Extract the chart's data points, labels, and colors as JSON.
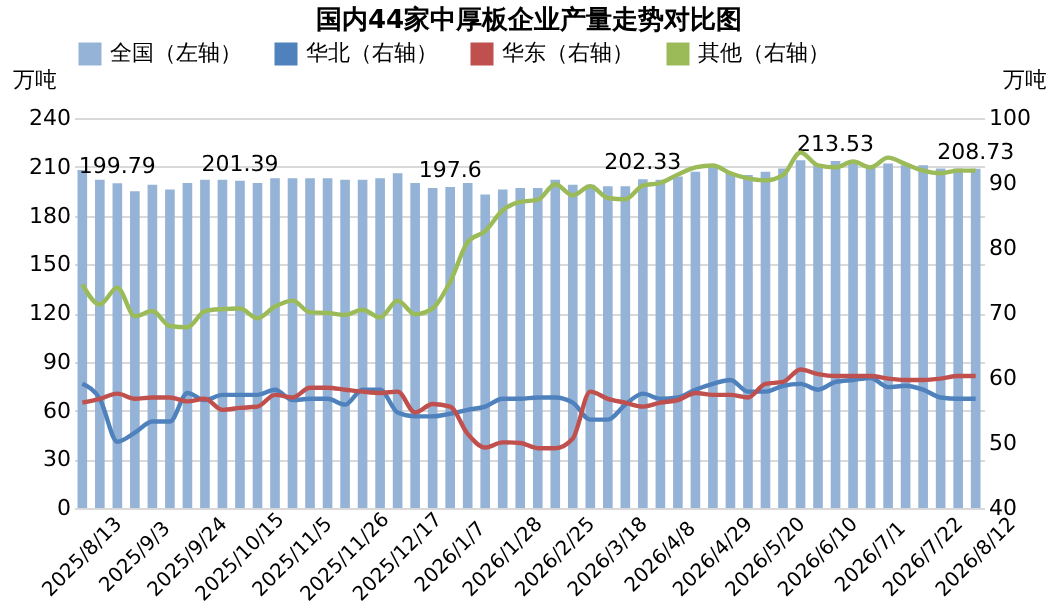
{
  "chart_data": {
    "type": "bar",
    "title": "国内44家中厚板企业产量走势对比图",
    "categories": [
      "2025/8/13",
      null,
      null,
      "2025/9/3",
      null,
      null,
      "2025/9/24",
      null,
      null,
      "2025/10/15",
      null,
      null,
      "2025/11/5",
      null,
      null,
      "2025/11/26",
      null,
      null,
      "2025/12/17",
      null,
      null,
      "2026/1/7",
      null,
      null,
      "2026/1/28",
      null,
      null,
      "2026/2/25",
      null,
      null,
      "2026/3/18",
      null,
      null,
      "2026/4/8",
      null,
      null,
      "2026/4/29",
      null,
      null,
      "2026/5/20",
      null,
      null,
      "2026/6/10",
      null,
      null,
      "2026/7/1",
      null,
      null,
      "2026/7/22",
      null,
      null,
      "2026/8/12"
    ],
    "series": [
      {
        "name": "全国（左轴）",
        "color": "#95b3d7",
        "values": [
          208,
          202,
          199.79,
          195,
          199,
          196,
          200,
          202,
          202,
          201.39,
          200,
          203,
          203,
          203,
          203,
          202,
          202,
          203,
          206,
          200,
          197,
          197.6,
          200,
          193,
          196,
          197,
          197,
          202,
          199,
          199,
          198,
          198,
          202.33,
          202,
          204,
          207,
          211,
          206,
          205,
          207,
          209,
          214,
          211,
          213.53,
          212,
          211,
          212,
          211,
          211,
          209,
          209,
          208.73
        ],
        "value_labels": [
          null,
          null,
          "199.79",
          null,
          null,
          null,
          null,
          null,
          null,
          "201.39",
          null,
          null,
          null,
          null,
          null,
          null,
          null,
          null,
          null,
          null,
          null,
          "197.6",
          null,
          null,
          null,
          null,
          null,
          null,
          null,
          null,
          null,
          null,
          "202.33",
          null,
          null,
          null,
          null,
          null,
          null,
          null,
          null,
          null,
          null,
          "213.53",
          null,
          null,
          null,
          null,
          null,
          null,
          null,
          "208.73"
        ]
      },
      {
        "name": "华北（右轴）",
        "type": "line",
        "axis": "y2",
        "color": "#4f81bd",
        "values": [
          59.1,
          56.8,
          50.2,
          51.6,
          53.3,
          53.3,
          57.7,
          56.6,
          57.4,
          57.4,
          57.4,
          58.2,
          56.6,
          56.8,
          56.8,
          55.9,
          58.2,
          58.2,
          54.7,
          54.1,
          54.1,
          54.5,
          55.1,
          55.6,
          56.8,
          56.8,
          57,
          57,
          56.2,
          53.6,
          53.6,
          55.9,
          57.6,
          56.8,
          57,
          58.2,
          59.1,
          59.7,
          57.9,
          57.9,
          58.8,
          59.1,
          58.2,
          59.4,
          59.7,
          60,
          58.6,
          58.8,
          58.2,
          57,
          56.8,
          56.8
        ]
      },
      {
        "name": "华东（右轴）",
        "type": "line",
        "axis": "y2",
        "color": "#c0504d",
        "values": [
          56.2,
          56.8,
          57.6,
          56.8,
          57,
          57,
          56.4,
          56.8,
          55.1,
          55.4,
          55.6,
          57.4,
          57,
          58.5,
          58.5,
          58.2,
          57.9,
          57.7,
          57.9,
          54.7,
          56,
          55.6,
          51.4,
          49.3,
          50.1,
          50,
          49.2,
          49.2,
          50.7,
          57.9,
          56.8,
          56.2,
          55.6,
          56.2,
          56.6,
          57.7,
          57.4,
          57.4,
          57,
          59.1,
          59.4,
          61.3,
          60.6,
          60.3,
          60.3,
          60.3,
          59.9,
          59.7,
          59.7,
          59.9,
          60.3,
          60.3
        ]
      },
      {
        "name": "其他（右轴）",
        "type": "line",
        "axis": "y2",
        "color": "#9bbb59",
        "values": [
          74.4,
          71.3,
          73.9,
          69.5,
          70.3,
          68,
          67.8,
          70.3,
          70.6,
          70.7,
          69.2,
          71,
          71.9,
          70.1,
          70,
          69.7,
          70.5,
          69.3,
          71.9,
          69.8,
          70.7,
          74.8,
          80.9,
          82.6,
          85.8,
          87.1,
          87.4,
          89.8,
          88.1,
          89.5,
          87.7,
          87.5,
          89.6,
          90,
          91.3,
          92.4,
          92.7,
          91.5,
          90.7,
          90.4,
          91.2,
          94.7,
          92.7,
          92.4,
          93.3,
          92.4,
          93.9,
          92.9,
          91.9,
          91.5,
          91.9,
          91.9
        ]
      }
    ],
    "ylabel": "万吨",
    "y2label": "万吨",
    "ylim": [
      0,
      240
    ],
    "yticks": [
      0,
      30,
      60,
      90,
      120,
      150,
      180,
      210,
      240
    ],
    "y2lim": [
      40,
      100
    ],
    "y2ticks": [
      40,
      50,
      60,
      70,
      80,
      90,
      100
    ],
    "grid": "y",
    "legend": "top",
    "marker": "none"
  }
}
